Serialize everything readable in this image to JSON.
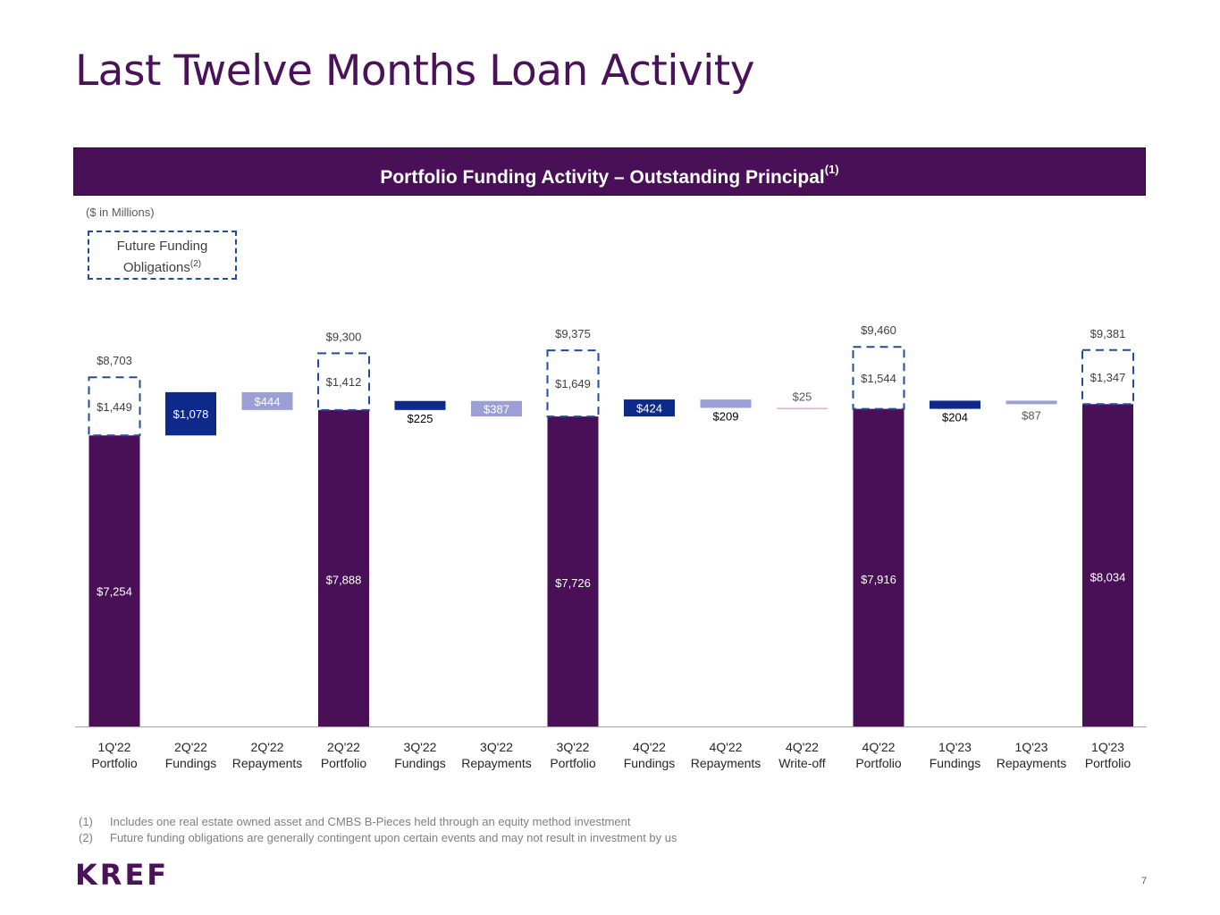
{
  "title": "Last Twelve Months Loan Activity",
  "banner": {
    "text": "Portfolio Funding Activity – Outstanding Principal",
    "sup": "(1)"
  },
  "units": "($ in Millions)",
  "legend": {
    "line1": "Future Funding",
    "line2": "Obligations",
    "sup": "(2)"
  },
  "colors": {
    "portfolio": "#4a1057",
    "fundings": "#0d2a8a",
    "repayments": "#9b9fd5",
    "writeoff": "#e8a6e0",
    "future_border": "#1f4ea0",
    "axis": "#a6a6a6"
  },
  "chart_data": {
    "type": "bar",
    "subtype": "waterfall",
    "title": "Portfolio Funding Activity – Outstanding Principal",
    "ylabel": "$ in Millions",
    "ylim": [
      0,
      10000
    ],
    "categories": [
      [
        "1Q'22",
        "Portfolio"
      ],
      [
        "2Q'22",
        "Fundings"
      ],
      [
        "2Q'22",
        "Repayments"
      ],
      [
        "2Q'22",
        "Portfolio"
      ],
      [
        "3Q'22",
        "Fundings"
      ],
      [
        "3Q'22",
        "Repayments"
      ],
      [
        "3Q'22",
        "Portfolio"
      ],
      [
        "4Q'22",
        "Fundings"
      ],
      [
        "4Q'22",
        "Repayments"
      ],
      [
        "4Q'22",
        "Write-off"
      ],
      [
        "4Q'22",
        "Portfolio"
      ],
      [
        "1Q'23",
        "Fundings"
      ],
      [
        "1Q'23",
        "Repayments"
      ],
      [
        "1Q'23",
        "Portfolio"
      ]
    ],
    "bars": [
      {
        "kind": "portfolio",
        "base": 0,
        "value": 7254,
        "label": "$7,254",
        "future": 1449,
        "future_label": "$1,449",
        "total_label": "$8,703"
      },
      {
        "kind": "fundings",
        "base": 7254,
        "value": 1078,
        "label": "$1,078"
      },
      {
        "kind": "repayments",
        "base": 7888,
        "value": 444,
        "label": "$444"
      },
      {
        "kind": "portfolio",
        "base": 0,
        "value": 7888,
        "label": "$7,888",
        "future": 1412,
        "future_label": "$1,412",
        "total_label": "$9,300"
      },
      {
        "kind": "fundings",
        "base": 7888,
        "value": 225,
        "label": "$225"
      },
      {
        "kind": "repayments",
        "base": 7726,
        "value": 387,
        "label": "$387"
      },
      {
        "kind": "portfolio",
        "base": 0,
        "value": 7726,
        "label": "$7,726",
        "future": 1649,
        "future_label": "$1,649",
        "total_label": "$9,375"
      },
      {
        "kind": "fundings",
        "base": 7726,
        "value": 424,
        "label": "$424"
      },
      {
        "kind": "repayments",
        "base": 7941,
        "value": 209,
        "label": "$209"
      },
      {
        "kind": "writeoff",
        "base": 7916,
        "value": 25,
        "label": "$25"
      },
      {
        "kind": "portfolio",
        "base": 0,
        "value": 7916,
        "label": "$7,916",
        "future": 1544,
        "future_label": "$1,544",
        "total_label": "$9,460"
      },
      {
        "kind": "fundings",
        "base": 7916,
        "value": 204,
        "label": "$204"
      },
      {
        "kind": "repayments",
        "base": 8033,
        "value": 87,
        "label": "$87"
      },
      {
        "kind": "portfolio",
        "base": 0,
        "value": 8034,
        "label": "$8,034",
        "future": 1347,
        "future_label": "$1,347",
        "total_label": "$9,381"
      }
    ]
  },
  "footnotes": [
    {
      "num": "(1)",
      "text": "Includes one real estate owned asset and CMBS B-Pieces held through an equity method investment"
    },
    {
      "num": "(2)",
      "text": "Future funding obligations are generally contingent upon certain events and may not result in investment by us"
    }
  ],
  "logo": "KREF",
  "page_number": "7"
}
